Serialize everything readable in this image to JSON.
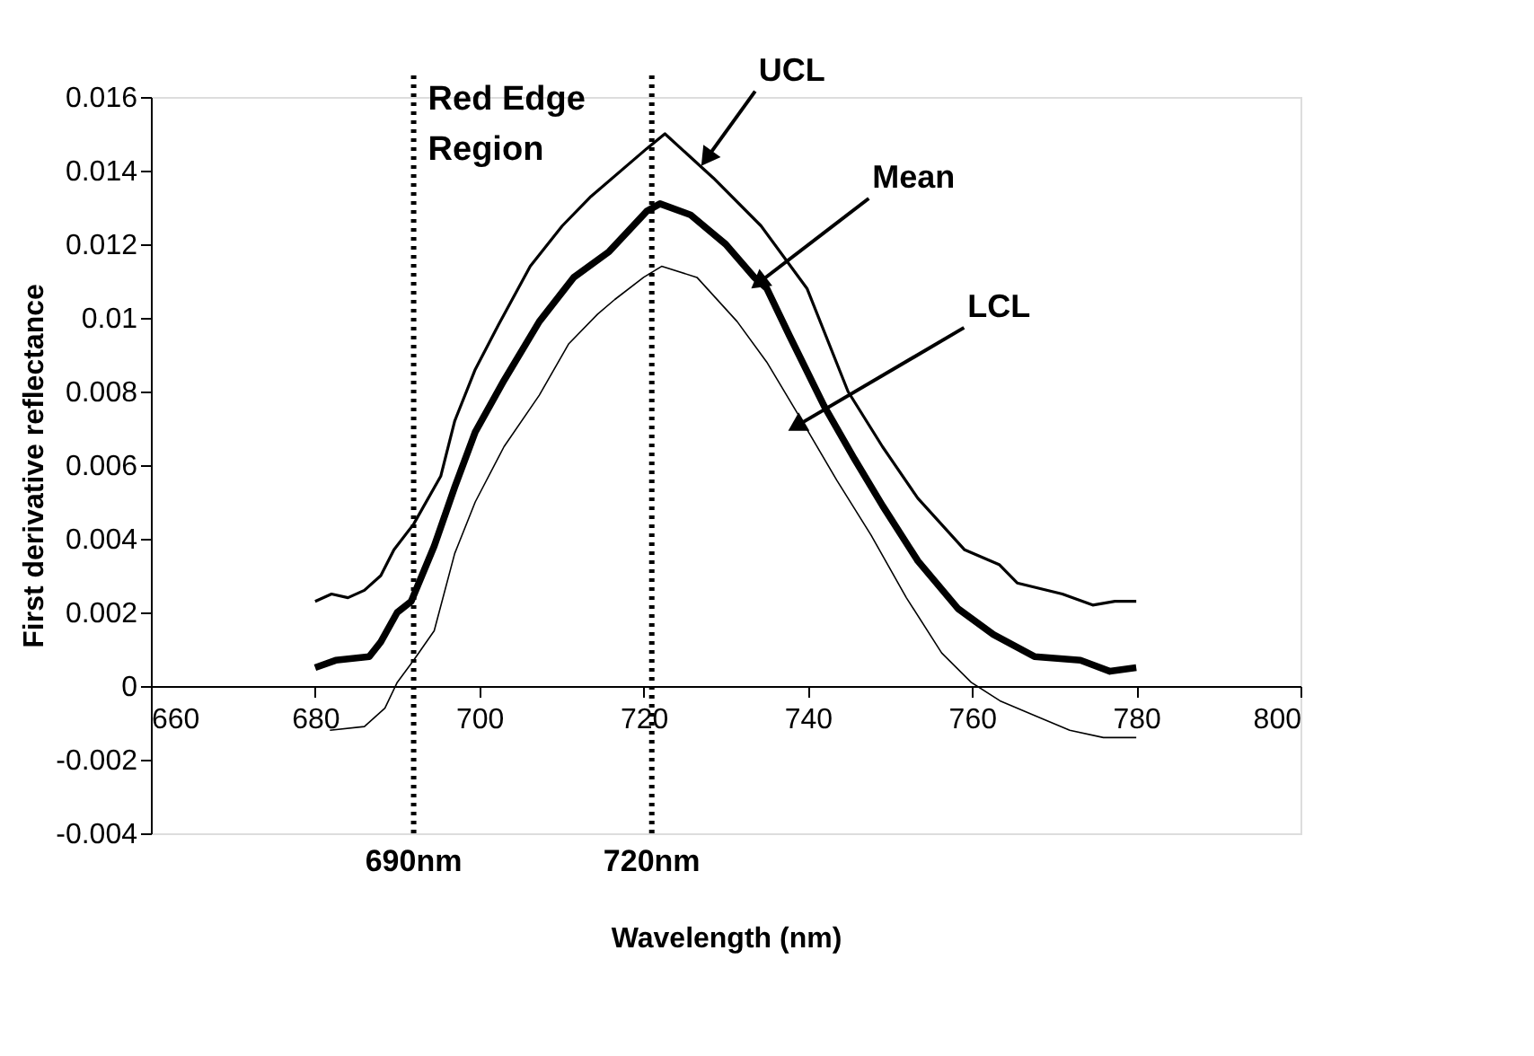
{
  "chart_data": {
    "type": "line",
    "xlabel": "Wavelength (nm)",
    "ylabel": "First derivative reflectance",
    "xlim": [
      660,
      800
    ],
    "xticks": [
      660,
      680,
      700,
      720,
      740,
      760,
      780,
      800
    ],
    "ylim": [
      -0.004,
      0.016
    ],
    "yticks": [
      -0.004,
      -0.002,
      0,
      0.002,
      0.004,
      0.006,
      0.008,
      0.01,
      0.012,
      0.014,
      0.016
    ],
    "grid": false,
    "marker": "none",
    "line_style": "solid",
    "series": [
      {
        "color": "#000000",
        "x": [
          680,
          682,
          684,
          686,
          688,
          689.6,
          692,
          695.3,
          697,
          699.5,
          702.3,
          706.2,
          710.1,
          713.6,
          720.4,
          722.6,
          728.5,
          734.3,
          739.9,
          744.9,
          749.1,
          753.4,
          759.1,
          763.3,
          765.5,
          771,
          774.7,
          777.4,
          780
        ],
        "values": [
          0.0023,
          0.0025,
          0.0024,
          0.0026,
          0.003,
          0.0037,
          0.0044,
          0.0057,
          0.0072,
          0.0086,
          0.0098,
          0.0114,
          0.0125,
          0.0133,
          0.0146,
          0.015,
          0.0138,
          0.0125,
          0.0108,
          0.008,
          0.0065,
          0.0051,
          0.0037,
          0.0033,
          0.0028,
          0.0025,
          0.0022,
          0.0023,
          0.0023
        ]
      },
      {
        "color": "#000000",
        "x": [
          680,
          682.5,
          686.6,
          688,
          690,
          691.7,
          694.5,
          697,
          699.5,
          703,
          707.3,
          711.5,
          715.8,
          720.4,
          722,
          725.7,
          730,
          733.5,
          735,
          737.8,
          742,
          745.6,
          749.1,
          753.4,
          758.3,
          762.6,
          767.6,
          773.2,
          776.8,
          780
        ],
        "values": [
          0.0005,
          0.0007,
          0.0008,
          0.0012,
          0.002,
          0.0023,
          0.0038,
          0.0054,
          0.0069,
          0.0083,
          0.0099,
          0.0111,
          0.0118,
          0.0129,
          0.0131,
          0.0128,
          0.012,
          0.0111,
          0.0108,
          0.0095,
          0.0076,
          0.0062,
          0.0049,
          0.0034,
          0.0021,
          0.0014,
          0.0008,
          0.0007,
          0.0004,
          0.0005
        ]
      },
      {
        "color": "#000000",
        "x": [
          681.8,
          686,
          688.5,
          690,
          692,
          694.5,
          697,
          699.5,
          703,
          707.3,
          710.9,
          714.4,
          716.5,
          720,
          722.2,
          726.5,
          731.4,
          735,
          739.3,
          743.5,
          747.7,
          752,
          756.3,
          759.9,
          763.4,
          767.6,
          771.9,
          776,
          780
        ],
        "values": [
          -0.0012,
          -0.0011,
          -0.0006,
          0.0001,
          0.0007,
          0.0015,
          0.0036,
          0.005,
          0.0065,
          0.0079,
          0.0093,
          0.0101,
          0.0105,
          0.0111,
          0.0114,
          0.0111,
          0.0099,
          0.0088,
          0.0072,
          0.0056,
          0.0041,
          0.0024,
          0.0009,
          0.0001,
          -0.0004,
          -0.0008,
          -0.0012,
          -0.0014,
          -0.0014
        ]
      }
    ],
    "ref_lines": [
      {
        "axis": "x",
        "value": 692,
        "label": "690nm",
        "line_style": "dotted",
        "color": "#000000"
      },
      {
        "axis": "x",
        "value": 721,
        "label": "720nm",
        "line_style": "dotted",
        "color": "#000000"
      }
    ],
    "annotations": [
      "Red Edge Region",
      {
        "text": "UCL",
        "x": 727.9,
        "y": 0.0144
      },
      {
        "text": "Mean",
        "x": 734.3,
        "y": 0.011
      },
      {
        "text": "LCL",
        "x": 738.9,
        "y": 0.0071
      }
    ]
  }
}
